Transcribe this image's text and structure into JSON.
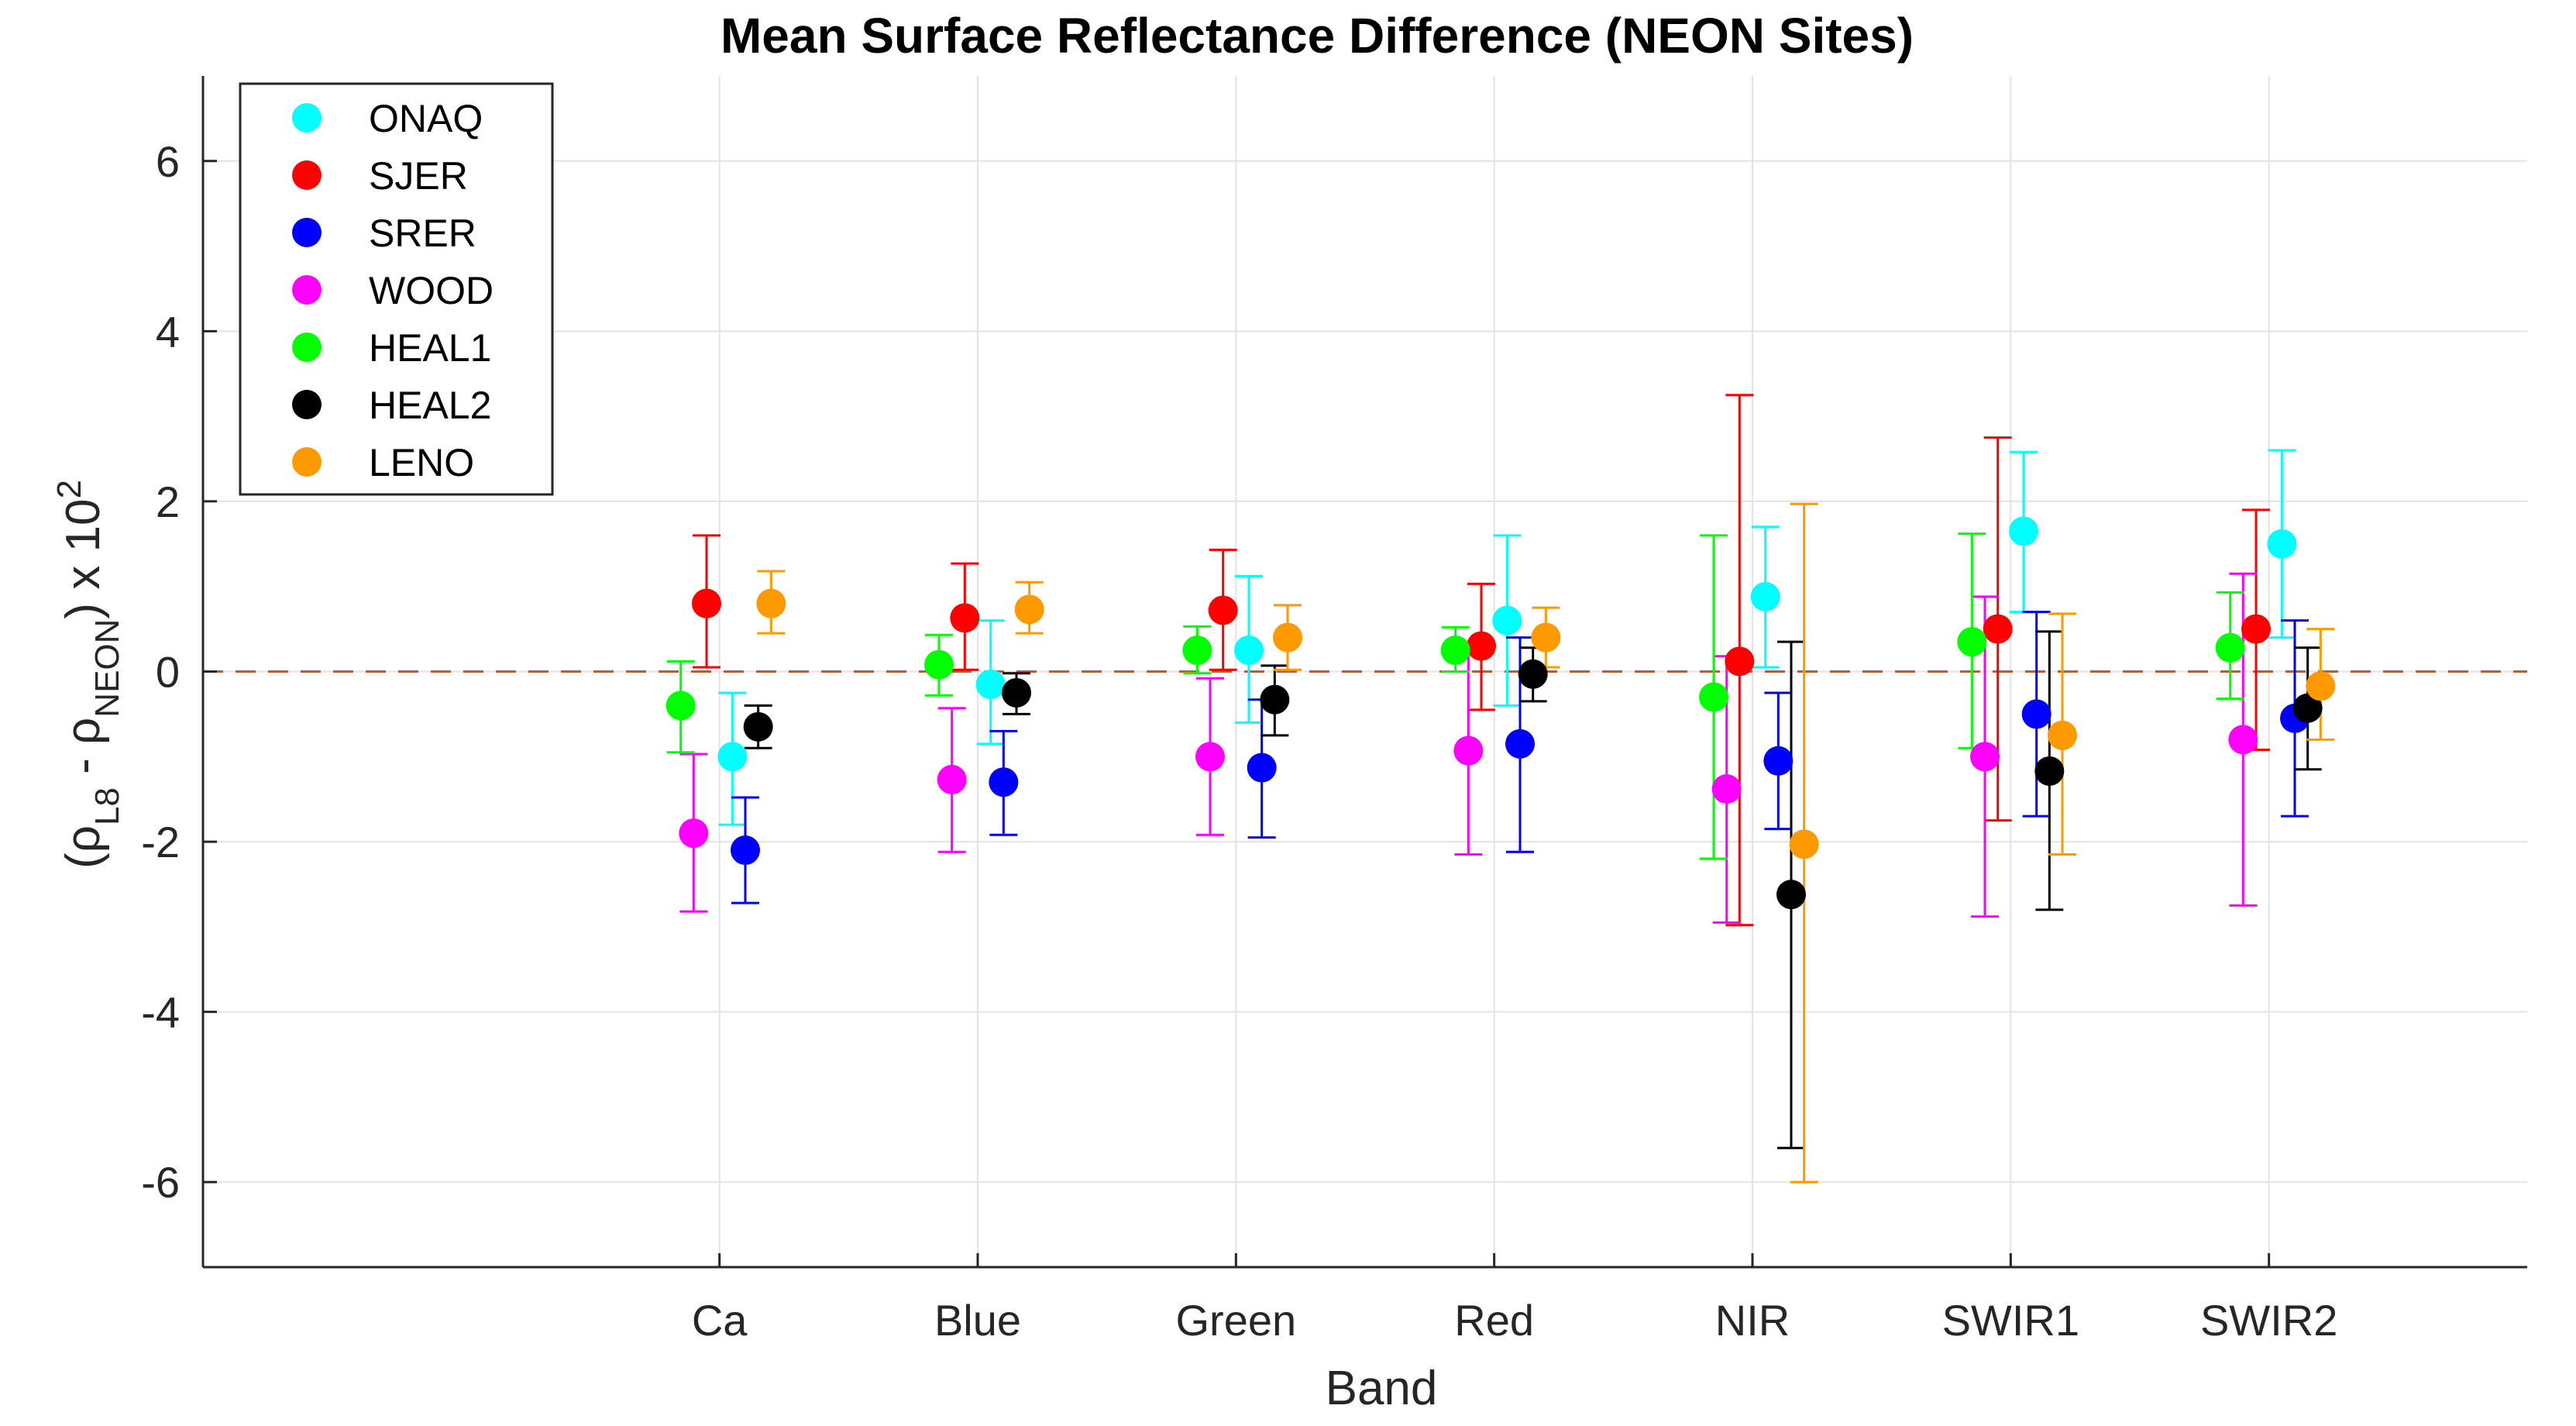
{
  "chart_data": {
    "type": "scatter",
    "title": "Mean Surface Reflectance Difference (NEON Sites)",
    "xlabel": "Band",
    "ylabel": {
      "open": "(ρ",
      "sub1": "L8",
      "mid": " - ρ",
      "sub2": "NEON",
      "close": ") x 10",
      "sup": "2"
    },
    "categories": [
      "Ca",
      "Blue",
      "Green",
      "Red",
      "NIR",
      "SWIR1",
      "SWIR2"
    ],
    "xlim": [
      -1,
      8
    ],
    "ylim": [
      -7,
      7
    ],
    "yticks": [
      -6,
      -4,
      -2,
      0,
      2,
      4,
      6
    ],
    "ytick_labels": [
      "-6",
      "-4",
      "-2",
      "0",
      "2",
      "4",
      "6"
    ],
    "grid": true,
    "legend_position": "top-left",
    "reference_line": {
      "y": 0,
      "style": "dashed",
      "color": "#d95319"
    },
    "series": [
      {
        "name": "ONAQ",
        "color": "#00ffff",
        "offset": 0.05,
        "values": [
          -1.0,
          -0.15,
          0.25,
          0.6,
          0.88,
          1.65,
          1.5
        ],
        "low": [
          -1.8,
          -0.85,
          -0.6,
          -0.4,
          0.05,
          0.7,
          0.4
        ],
        "high": [
          -0.25,
          0.6,
          1.12,
          1.6,
          1.7,
          2.58,
          2.6
        ]
      },
      {
        "name": "SJER",
        "color": "#ff0000",
        "offset": -0.05,
        "values": [
          0.8,
          0.63,
          0.72,
          0.3,
          0.12,
          0.5,
          0.5
        ],
        "low": [
          0.05,
          0.02,
          0.02,
          -0.45,
          -2.98,
          -1.75,
          -0.92
        ],
        "high": [
          1.6,
          1.27,
          1.43,
          1.03,
          3.25,
          2.75,
          1.9
        ],
        "display_offsets": [
          -0.05,
          -0.05,
          -0.05,
          -0.05,
          -0.05,
          -0.05,
          -0.05
        ]
      },
      {
        "name": "SRER",
        "color": "#0000ff",
        "offset": 0.1,
        "values": [
          -2.1,
          -1.3,
          -1.13,
          -0.85,
          -1.05,
          -0.5,
          -0.55
        ],
        "low": [
          -2.72,
          -1.92,
          -1.95,
          -2.12,
          -1.85,
          -1.7,
          -1.7
        ],
        "high": [
          -1.48,
          -0.7,
          -0.33,
          0.4,
          -0.25,
          0.7,
          0.6
        ]
      },
      {
        "name": "WOOD",
        "color": "#ff00ff",
        "offset": -0.1,
        "values": [
          -1.9,
          -1.27,
          -1.0,
          -0.93,
          -1.38,
          -1.0,
          -0.8
        ],
        "low": [
          -2.82,
          -2.12,
          -1.92,
          -2.15,
          -2.95,
          -2.88,
          -2.75
        ],
        "high": [
          -0.97,
          -0.43,
          -0.08,
          0.3,
          0.18,
          0.88,
          1.15
        ]
      },
      {
        "name": "HEAL1",
        "color": "#00ff00",
        "offset": -0.15,
        "values": [
          -0.4,
          0.08,
          0.25,
          0.25,
          -0.3,
          0.35,
          0.28
        ],
        "low": [
          -0.95,
          -0.28,
          -0.02,
          0.0,
          -2.2,
          -0.9,
          -0.32
        ],
        "high": [
          0.12,
          0.43,
          0.53,
          0.52,
          1.6,
          1.62,
          0.93
        ]
      },
      {
        "name": "HEAL2",
        "color": "#000000",
        "offset": 0.15,
        "values": [
          -0.65,
          -0.25,
          -0.33,
          -0.03,
          -2.62,
          -1.17,
          -0.43
        ],
        "low": [
          -0.9,
          -0.5,
          -0.75,
          -0.35,
          -5.6,
          -2.8,
          -1.15
        ],
        "high": [
          -0.4,
          -0.02,
          0.07,
          0.28,
          0.35,
          0.47,
          0.28
        ]
      },
      {
        "name": "LENO",
        "color": "#ff9900",
        "offset": 0.2,
        "values": [
          0.8,
          0.73,
          0.4,
          0.4,
          -2.03,
          -0.75,
          -0.17
        ],
        "low": [
          0.45,
          0.45,
          0.02,
          0.05,
          -6.0,
          -2.15,
          -0.8
        ],
        "high": [
          1.18,
          1.05,
          0.78,
          0.75,
          1.97,
          0.68,
          0.5
        ]
      }
    ]
  }
}
